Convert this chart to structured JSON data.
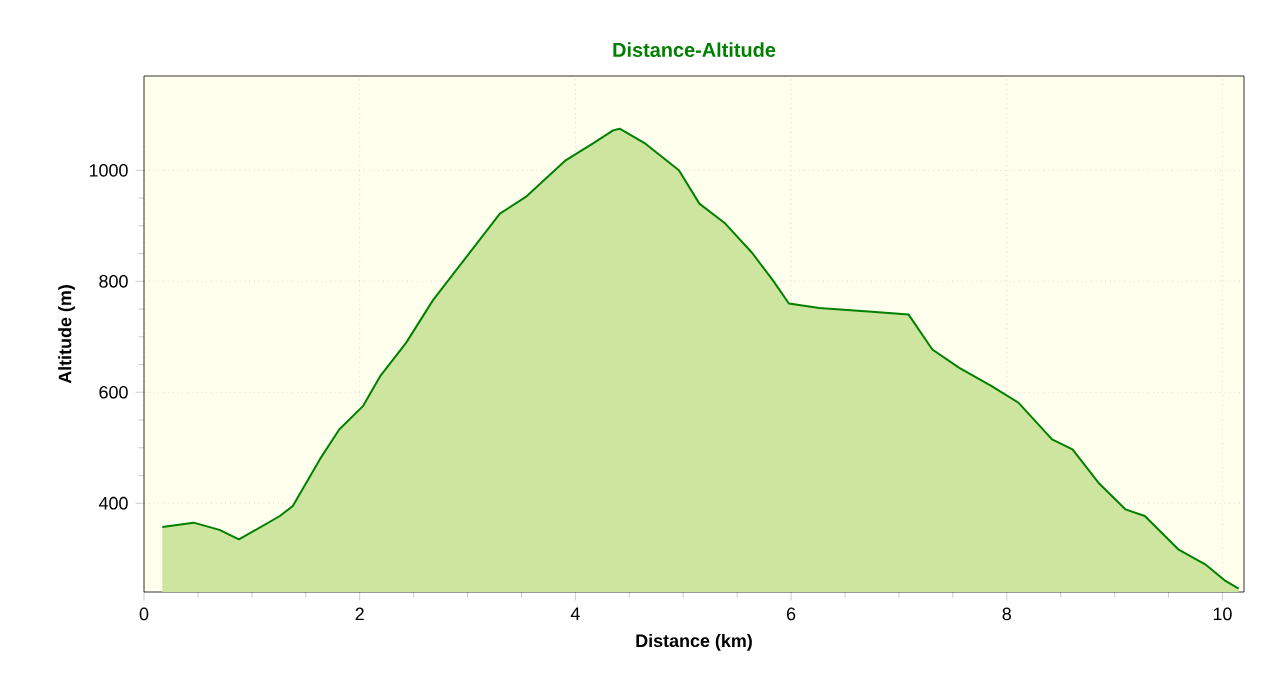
{
  "chart_data": {
    "type": "area",
    "title": "Distance-Altitude",
    "xlabel": "Distance (km)",
    "ylabel": "Altitude (m)",
    "xlim": [
      0,
      10.2
    ],
    "ylim": [
      240,
      1170
    ],
    "xticks": [
      0,
      2,
      4,
      6,
      8,
      10
    ],
    "yticks": [
      400,
      600,
      800,
      1000
    ],
    "grid": true,
    "series": [
      {
        "color": "#008000",
        "x": [
          0.17,
          0.46,
          0.7,
          0.88,
          0.99,
          1.26,
          1.38,
          1.63,
          1.81,
          2.03,
          2.19,
          2.43,
          2.68,
          2.99,
          3.3,
          3.54,
          3.91,
          4.16,
          4.35,
          4.41,
          4.65,
          4.96,
          5.15,
          5.39,
          5.64,
          5.83,
          5.98,
          6.26,
          6.75,
          7.09,
          7.31,
          7.56,
          7.86,
          8.11,
          8.42,
          8.61,
          8.85,
          9.1,
          9.28,
          9.59,
          9.84,
          10.02,
          10.15
        ],
        "values": [
          357,
          365,
          352,
          335,
          347,
          377,
          395,
          479,
          533,
          575,
          629,
          689,
          766,
          844,
          922,
          952,
          1018,
          1048,
          1072,
          1075,
          1048,
          1000,
          940,
          904,
          851,
          802,
          760,
          752,
          745,
          740,
          677,
          644,
          611,
          581,
          515,
          497,
          437,
          389,
          377,
          317,
          290,
          261,
          246
        ]
      }
    ]
  }
}
